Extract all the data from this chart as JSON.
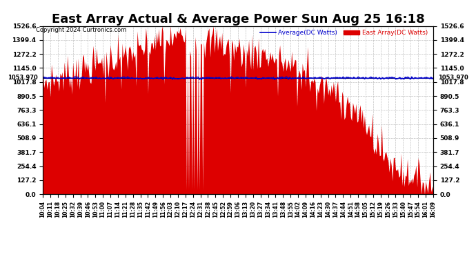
{
  "title": "East Array Actual & Average Power Sun Aug 25 16:18",
  "copyright": "Copyright 2024 Curtronics.com",
  "legend_avg": "Average(DC Watts)",
  "legend_east": "East Array(DC Watts)",
  "ymin": 0.0,
  "ymax": 1526.6,
  "yticks": [
    0.0,
    127.2,
    254.4,
    381.7,
    508.9,
    636.1,
    763.3,
    890.5,
    1017.8,
    1145.0,
    1272.2,
    1399.4,
    1526.6
  ],
  "hline_value": 1053.97,
  "hline_label": "1053.970",
  "bg_color": "#ffffff",
  "fill_color": "#dd0000",
  "avg_line_color": "#0000cc",
  "hline_color": "#000080",
  "grid_color": "#bbbbbb",
  "title_fontsize": 13,
  "tick_fontsize": 6.5,
  "label_fontsize": 7,
  "x_labels": [
    "10:04",
    "10:11",
    "10:18",
    "10:25",
    "10:32",
    "10:39",
    "10:46",
    "10:53",
    "11:00",
    "11:07",
    "11:14",
    "11:21",
    "11:28",
    "11:35",
    "11:42",
    "11:49",
    "11:56",
    "12:03",
    "12:10",
    "12:17",
    "12:24",
    "12:31",
    "12:38",
    "12:45",
    "12:52",
    "12:59",
    "13:06",
    "13:13",
    "13:20",
    "13:27",
    "13:34",
    "13:41",
    "13:48",
    "13:55",
    "14:02",
    "14:09",
    "14:16",
    "14:23",
    "14:30",
    "14:37",
    "14:44",
    "14:51",
    "14:58",
    "15:05",
    "15:12",
    "15:19",
    "15:26",
    "15:33",
    "15:40",
    "15:47",
    "15:54",
    "16:01",
    "16:09"
  ]
}
